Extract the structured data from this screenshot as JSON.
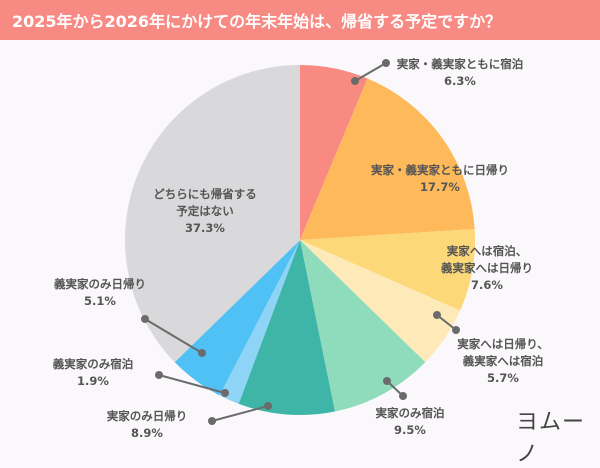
{
  "title": "2025年から2026年にかけての年末年始は、帰省する予定ですか？",
  "logo": "ヨムーノ",
  "chart_data": {
    "type": "pie",
    "title": "2025年から2026年にかけての年末年始は、帰省する予定ですか？",
    "start_angle": "12 o'clock, clockwise",
    "categories": [
      "実家・義実家ともに宿泊",
      "実家・義実家ともに日帰り",
      "実家へは宿泊、義実家へは日帰り",
      "実家へは日帰り、義実家へは宿泊",
      "実家のみ宿泊",
      "実家のみ日帰り",
      "義実家のみ宿泊",
      "義実家のみ日帰り",
      "どちらにも帰省する予定はない"
    ],
    "values": [
      6.3,
      17.7,
      7.6,
      5.7,
      9.5,
      8.9,
      1.9,
      5.1,
      37.3
    ],
    "colors": [
      "#f98a82",
      "#fdb95a",
      "#fdd878",
      "#fdeab8",
      "#8fdcbc",
      "#3fb5a8",
      "#8dd4f6",
      "#4fc1f4",
      "#d9d8da"
    ],
    "unit": "%"
  },
  "labels": [
    {
      "line1": "実家・義実家ともに宿泊",
      "line2": "",
      "pct": "6.3%"
    },
    {
      "line1": "実家・義実家ともに日帰り",
      "line2": "",
      "pct": "17.7%"
    },
    {
      "line1": "実家へは宿泊、",
      "line2": "義実家へは日帰り",
      "pct": "7.6%"
    },
    {
      "line1": "実家へは日帰り、",
      "line2": "義実家へは宿泊",
      "pct": "5.7%"
    },
    {
      "line1": "実家のみ宿泊",
      "line2": "",
      "pct": "9.5%"
    },
    {
      "line1": "実家のみ日帰り",
      "line2": "",
      "pct": "8.9%"
    },
    {
      "line1": "義実家のみ宿泊",
      "line2": "",
      "pct": "1.9%"
    },
    {
      "line1": "義実家のみ日帰り",
      "line2": "",
      "pct": "5.1%"
    },
    {
      "line1": "どちらにも帰省する",
      "line2": "予定はない",
      "pct": "37.3%"
    }
  ]
}
